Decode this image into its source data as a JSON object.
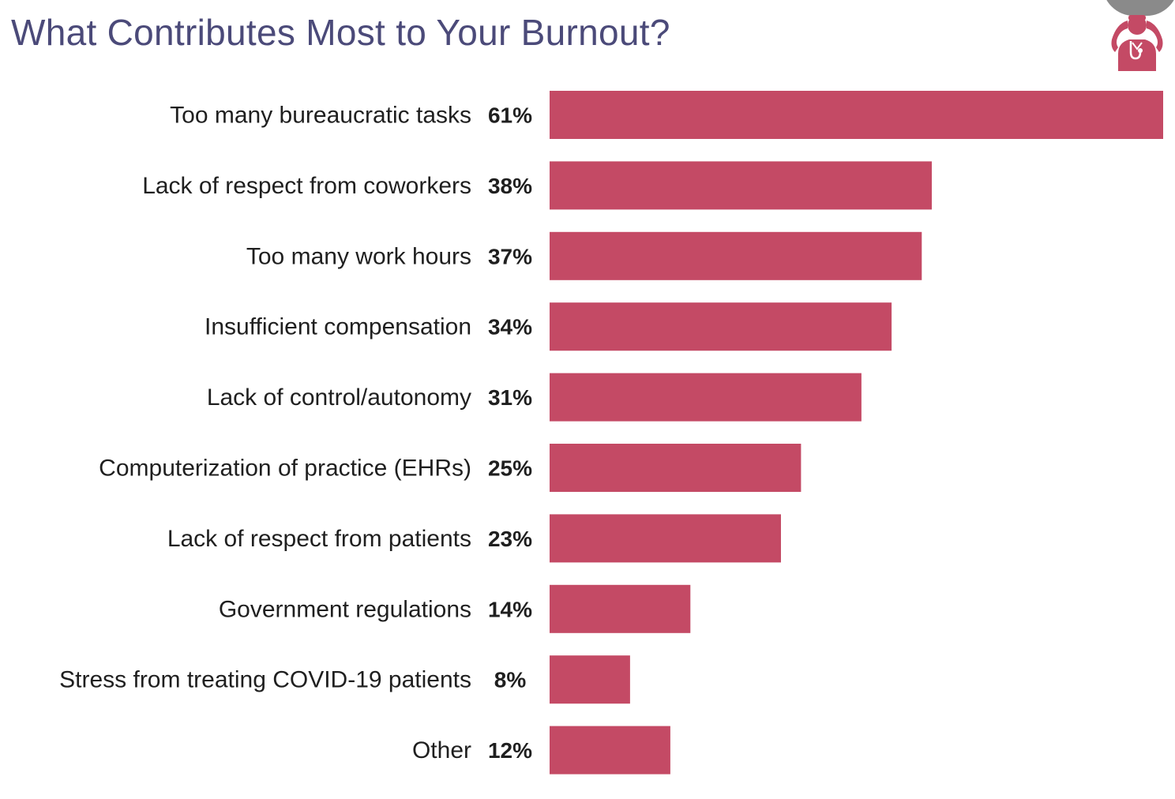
{
  "colors": {
    "bar": "#c44a65",
    "title": "#4b4a79",
    "icon": "#c44a65"
  },
  "icon": {
    "name": "doctor-stressed-icon"
  },
  "chart_data": {
    "type": "bar",
    "orientation": "horizontal",
    "title": "What Contributes Most to Your Burnout?",
    "categories": [
      "Too many bureaucratic tasks",
      "Lack of respect from coworkers",
      "Too many work hours",
      "Insufficient compensation",
      "Lack of control/autonomy",
      "Computerization of practice (EHRs)",
      "Lack of respect from patients",
      "Government regulations",
      "Stress from treating COVID-19 patients",
      "Other"
    ],
    "values": [
      61,
      38,
      37,
      34,
      31,
      25,
      23,
      14,
      8,
      12
    ],
    "value_labels": [
      "61%",
      "38%",
      "37%",
      "34%",
      "31%",
      "25%",
      "23%",
      "14%",
      "8%",
      "12%"
    ],
    "unit": "%",
    "xlim": [
      0,
      61
    ],
    "grid": false,
    "legend": "none"
  }
}
